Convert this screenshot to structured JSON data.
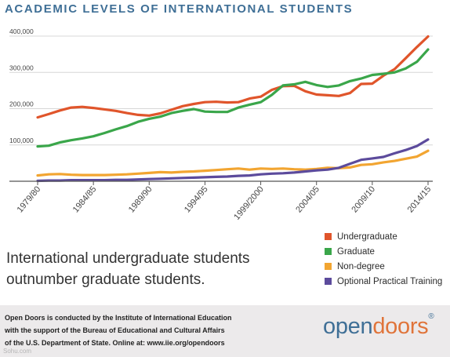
{
  "title": "ACADEMIC LEVELS OF INTERNATIONAL STUDENTS",
  "subtitle_lines": [
    "International undergraduate students",
    "outnumber graduate students."
  ],
  "footer": {
    "lines": [
      "Open Doors is conducted by the Institute of International Education",
      "with the support of the Bureau of Educational and Cultural Affairs",
      "of the U.S. Department of State. Online at: www.iie.org/opendoors"
    ]
  },
  "logo": {
    "part1": "open",
    "part2": "doors",
    "mark": "®"
  },
  "watermark": "Sohu.com",
  "colors": {
    "accent": "#3f6f96",
    "undergraduate": "#e0552b",
    "graduate": "#3aa64a",
    "non_degree": "#f2a531",
    "opt": "#5c4b9c",
    "axis": "#555555",
    "grid": "#d7d7d7"
  },
  "chart_data": {
    "type": "line",
    "title": "ACADEMIC LEVELS OF INTERNATIONAL STUDENTS",
    "xlabel": "",
    "ylabel": "",
    "ylim": [
      0,
      400000
    ],
    "yticks": [
      100000,
      200000,
      300000,
      400000
    ],
    "ytick_labels": [
      "100,000",
      "200,000",
      "300,000",
      "400,000"
    ],
    "x_start": 1979,
    "x_end": 2014,
    "xtick_years": [
      1979,
      1984,
      1989,
      1994,
      1999,
      2004,
      2009,
      2014
    ],
    "xtick_labels": [
      "1979/80",
      "1984/85",
      "1989/90",
      "1994/95",
      "1999/2000",
      "2004/05",
      "2009/10",
      "2014/15"
    ],
    "grid": true,
    "legend_position": "bottom-right",
    "series": [
      {
        "name": "Undergraduate",
        "color": "#e0552b",
        "values": [
          [
            1979,
            176000
          ],
          [
            1980,
            185000
          ],
          [
            1981,
            195000
          ],
          [
            1982,
            203000
          ],
          [
            1983,
            205000
          ],
          [
            1984,
            202000
          ],
          [
            1985,
            198000
          ],
          [
            1986,
            194000
          ],
          [
            1987,
            188000
          ],
          [
            1988,
            183000
          ],
          [
            1989,
            181000
          ],
          [
            1990,
            187000
          ],
          [
            1991,
            197000
          ],
          [
            1992,
            207000
          ],
          [
            1993,
            213000
          ],
          [
            1994,
            218000
          ],
          [
            1995,
            219000
          ],
          [
            1996,
            217000
          ],
          [
            1997,
            218000
          ],
          [
            1998,
            228000
          ],
          [
            1999,
            233000
          ],
          [
            2000,
            252000
          ],
          [
            2001,
            262000
          ],
          [
            2002,
            263000
          ],
          [
            2003,
            248000
          ],
          [
            2004,
            239000
          ],
          [
            2005,
            237000
          ],
          [
            2006,
            235000
          ],
          [
            2007,
            243000
          ],
          [
            2008,
            268000
          ],
          [
            2009,
            269000
          ],
          [
            2010,
            291000
          ],
          [
            2011,
            309000
          ],
          [
            2012,
            339000
          ],
          [
            2013,
            370000
          ],
          [
            2014,
            399000
          ]
        ]
      },
      {
        "name": "Graduate",
        "color": "#3aa64a",
        "values": [
          [
            1979,
            96000
          ],
          [
            1980,
            98000
          ],
          [
            1981,
            107000
          ],
          [
            1982,
            113000
          ],
          [
            1983,
            118000
          ],
          [
            1984,
            124000
          ],
          [
            1985,
            133000
          ],
          [
            1986,
            143000
          ],
          [
            1987,
            152000
          ],
          [
            1988,
            164000
          ],
          [
            1989,
            172000
          ],
          [
            1990,
            178000
          ],
          [
            1991,
            188000
          ],
          [
            1992,
            194000
          ],
          [
            1993,
            199000
          ],
          [
            1994,
            192000
          ],
          [
            1995,
            191000
          ],
          [
            1996,
            191000
          ],
          [
            1997,
            203000
          ],
          [
            1998,
            211000
          ],
          [
            1999,
            218000
          ],
          [
            2000,
            238000
          ],
          [
            2001,
            264000
          ],
          [
            2002,
            267000
          ],
          [
            2003,
            274000
          ],
          [
            2004,
            265000
          ],
          [
            2005,
            260000
          ],
          [
            2006,
            264000
          ],
          [
            2007,
            276000
          ],
          [
            2008,
            283000
          ],
          [
            2009,
            293000
          ],
          [
            2010,
            296000
          ],
          [
            2011,
            300000
          ],
          [
            2012,
            311000
          ],
          [
            2013,
            329000
          ],
          [
            2014,
            363000
          ]
        ]
      },
      {
        "name": "Non-degree",
        "color": "#f2a531",
        "values": [
          [
            1979,
            16000
          ],
          [
            1980,
            19000
          ],
          [
            1981,
            20000
          ],
          [
            1982,
            18000
          ],
          [
            1983,
            17000
          ],
          [
            1984,
            17000
          ],
          [
            1985,
            17000
          ],
          [
            1986,
            18000
          ],
          [
            1987,
            19000
          ],
          [
            1988,
            21000
          ],
          [
            1989,
            23000
          ],
          [
            1990,
            25000
          ],
          [
            1991,
            24000
          ],
          [
            1992,
            26000
          ],
          [
            1993,
            27000
          ],
          [
            1994,
            29000
          ],
          [
            1995,
            31000
          ],
          [
            1996,
            33000
          ],
          [
            1997,
            35000
          ],
          [
            1998,
            32000
          ],
          [
            1999,
            35000
          ],
          [
            2000,
            34000
          ],
          [
            2001,
            35000
          ],
          [
            2002,
            33000
          ],
          [
            2003,
            32000
          ],
          [
            2004,
            34000
          ],
          [
            2005,
            37000
          ],
          [
            2006,
            36000
          ],
          [
            2007,
            38000
          ],
          [
            2008,
            45000
          ],
          [
            2009,
            47000
          ],
          [
            2010,
            52000
          ],
          [
            2011,
            56000
          ],
          [
            2012,
            62000
          ],
          [
            2013,
            68000
          ],
          [
            2014,
            84000
          ]
        ]
      },
      {
        "name": "Optional Practical Training",
        "color": "#5c4b9c",
        "values": [
          [
            1979,
            1000
          ],
          [
            1980,
            2000
          ],
          [
            1981,
            2000
          ],
          [
            1982,
            3000
          ],
          [
            1983,
            3000
          ],
          [
            1984,
            3000
          ],
          [
            1985,
            3000
          ],
          [
            1986,
            4000
          ],
          [
            1987,
            4000
          ],
          [
            1988,
            5000
          ],
          [
            1989,
            6000
          ],
          [
            1990,
            7000
          ],
          [
            1991,
            8000
          ],
          [
            1992,
            9000
          ],
          [
            1993,
            10000
          ],
          [
            1994,
            11000
          ],
          [
            1995,
            12000
          ],
          [
            1996,
            13000
          ],
          [
            1997,
            15000
          ],
          [
            1998,
            16000
          ],
          [
            1999,
            19000
          ],
          [
            2000,
            21000
          ],
          [
            2001,
            22000
          ],
          [
            2002,
            24000
          ],
          [
            2003,
            27000
          ],
          [
            2004,
            30000
          ],
          [
            2005,
            32000
          ],
          [
            2006,
            37000
          ],
          [
            2007,
            48000
          ],
          [
            2008,
            59000
          ],
          [
            2009,
            63000
          ],
          [
            2010,
            67000
          ],
          [
            2011,
            77000
          ],
          [
            2012,
            86000
          ],
          [
            2013,
            97000
          ],
          [
            2014,
            115000
          ]
        ]
      }
    ]
  }
}
